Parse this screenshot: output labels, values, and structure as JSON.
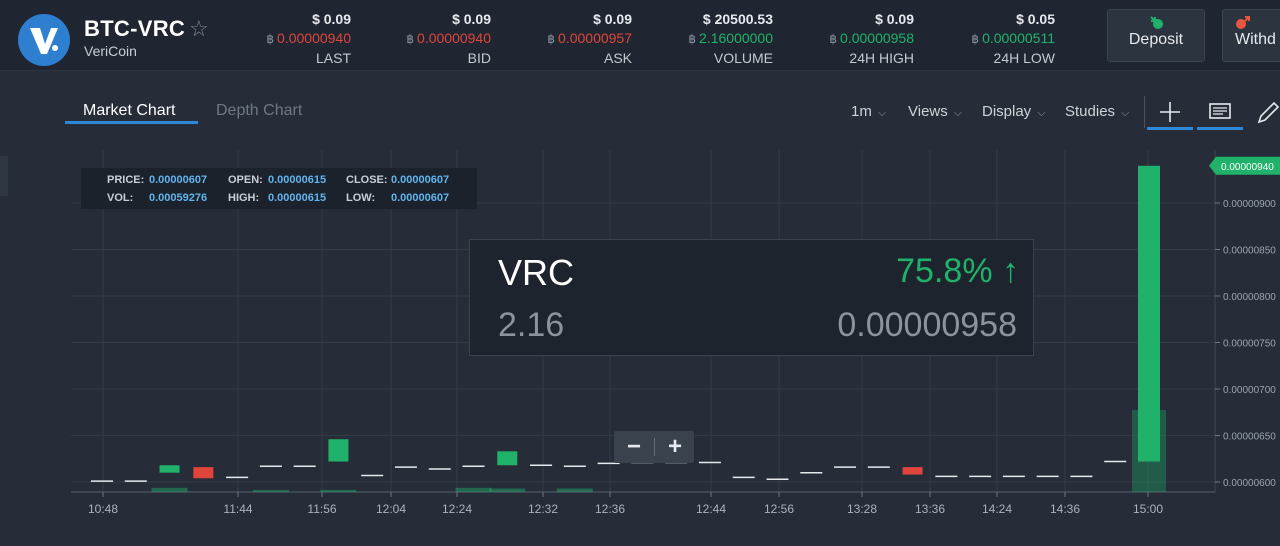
{
  "header": {
    "pair": "BTC-VRC",
    "coin_name": "VeriCoin",
    "btc_symbol": "฿",
    "stats": [
      {
        "usd": "$ 0.09",
        "btc": "0.00000940",
        "label": "LAST",
        "tone": "red"
      },
      {
        "usd": "$ 0.09",
        "btc": "0.00000940",
        "label": "BID",
        "tone": "red"
      },
      {
        "usd": "$ 0.09",
        "btc": "0.00000957",
        "label": "ASK",
        "tone": "red"
      },
      {
        "usd": "$ 20500.53",
        "btc": "2.16000000",
        "label": "VOLUME",
        "tone": "green"
      },
      {
        "usd": "$ 0.09",
        "btc": "0.00000958",
        "label": "24H HIGH",
        "tone": "green"
      },
      {
        "usd": "$ 0.05",
        "btc": "0.00000511",
        "label": "24H LOW",
        "tone": "green"
      }
    ],
    "deposit_label": "Deposit",
    "withdraw_label": "Withd"
  },
  "tabs": {
    "market": "Market Chart",
    "depth": "Depth Chart",
    "active": "market"
  },
  "toolbar": {
    "interval": "1m",
    "views": "Views",
    "display": "Display",
    "studies": "Studies"
  },
  "tooltip": {
    "price_label": "PRICE:",
    "price": "0.00000607",
    "open_label": "OPEN:",
    "open": "0.00000615",
    "close_label": "CLOSE:",
    "close": "0.00000607",
    "vol_label": "VOL:",
    "vol": "0.00059276",
    "high_label": "HIGH:",
    "high": "0.00000615",
    "low_label": "LOW:",
    "low": "0.00000607"
  },
  "summary_card": {
    "symbol": "VRC",
    "change": "75.8%",
    "volume": "2.16",
    "price": "0.00000958"
  },
  "zoom": {
    "minus": "−",
    "plus": "+"
  },
  "colors": {
    "up": "#20b26a",
    "down": "#e0453b",
    "accent": "#2e88d8",
    "background": "#262d38"
  },
  "icons": {
    "deposit": "deposit-arrow-icon",
    "withdraw": "withdraw-arrow-icon",
    "crosshair": "crosshair-icon",
    "notes": "notes-icon",
    "pencil": "pencil-icon",
    "favorite": "star-icon",
    "change": "arrow-up-icon"
  },
  "chart_data": {
    "type": "candlestick",
    "current_price_label": "0.00000940",
    "y_ticks": [
      "0.00000900",
      "0.00000850",
      "0.00000800",
      "0.00000750",
      "0.00000700",
      "0.00000650",
      "0.00000600"
    ],
    "ylim": [
      5.9e-06,
      9.5e-06
    ],
    "x_ticks": [
      "10:48",
      "11:44",
      "11:56",
      "12:04",
      "12:24",
      "12:32",
      "12:36",
      "12:44",
      "12:56",
      "13:28",
      "13:36",
      "14:24",
      "14:36",
      "15:00"
    ],
    "candles": [
      {
        "open": 6.03e-06,
        "close": 6.01e-06
      },
      {
        "open": 6.01e-06,
        "close": 6.01e-06
      },
      {
        "open": 6.1e-06,
        "close": 6.18e-06
      },
      {
        "open": 6.16e-06,
        "close": 6.04e-06
      },
      {
        "open": 6.05e-06,
        "close": 6.05e-06
      },
      {
        "open": 6.17e-06,
        "close": 6.17e-06
      },
      {
        "open": 6.17e-06,
        "close": 6.17e-06
      },
      {
        "open": 6.22e-06,
        "close": 6.46e-06
      },
      {
        "open": 6.07e-06,
        "close": 6.07e-06
      },
      {
        "open": 6.16e-06,
        "close": 6.16e-06
      },
      {
        "open": 6.14e-06,
        "close": 6.14e-06
      },
      {
        "open": 6.17e-06,
        "close": 6.17e-06
      },
      {
        "open": 6.18e-06,
        "close": 6.33e-06
      },
      {
        "open": 6.18e-06,
        "close": 6.18e-06
      },
      {
        "open": 6.19e-06,
        "close": 6.17e-06
      },
      {
        "open": 6.2e-06,
        "close": 6.2e-06
      },
      {
        "open": 6.21e-06,
        "close": 6.21e-06
      },
      {
        "open": 6.21e-06,
        "close": 6.21e-06
      },
      {
        "open": 6.21e-06,
        "close": 6.21e-06
      },
      {
        "open": 6.03e-06,
        "close": 6.05e-06
      },
      {
        "open": 6.03e-06,
        "close": 6.03e-06
      },
      {
        "open": 6.1e-06,
        "close": 6.1e-06
      },
      {
        "open": 6.16e-06,
        "close": 6.16e-06
      },
      {
        "open": 6.16e-06,
        "close": 6.16e-06
      },
      {
        "open": 6.16e-06,
        "close": 6.08e-06
      },
      {
        "open": 6.06e-06,
        "close": 6.06e-06
      },
      {
        "open": 6.06e-06,
        "close": 6.06e-06
      },
      {
        "open": 6.06e-06,
        "close": 6.06e-06
      },
      {
        "open": 6.06e-06,
        "close": 6.06e-06
      },
      {
        "open": 6.06e-06,
        "close": 6.06e-06
      },
      {
        "open": 6.22e-06,
        "close": 6.22e-06
      },
      {
        "open": 6.22e-06,
        "close": 9.4e-06
      }
    ],
    "volumes": [
      0,
      0,
      0.06,
      0,
      0,
      0.02,
      0,
      0.03,
      0,
      0,
      0,
      0.06,
      0.05,
      0,
      0.05,
      0,
      0,
      0,
      0,
      0,
      0,
      0,
      0,
      0,
      0,
      0,
      0,
      0,
      0,
      0,
      0,
      1
    ],
    "grid": true
  }
}
